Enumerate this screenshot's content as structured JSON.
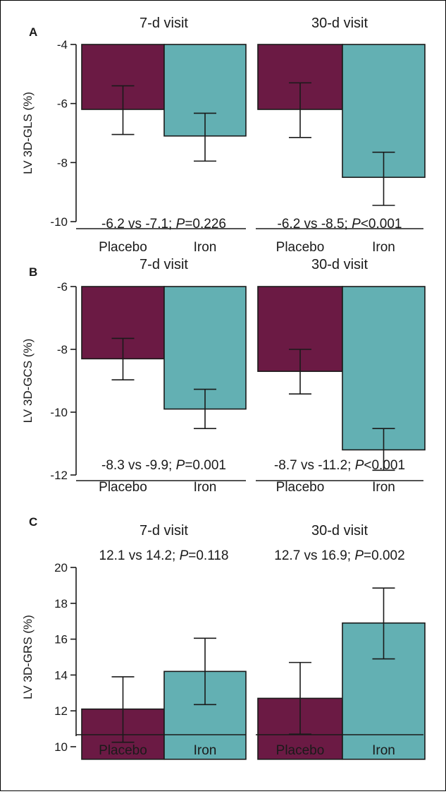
{
  "chart_data": [
    {
      "type": "bar",
      "panel": "A",
      "ylabel": "LV 3D-GLS (%)",
      "ylim": [
        -10,
        -4
      ],
      "yticks": [
        -4,
        -6,
        -8,
        -10
      ],
      "bar_base": -4,
      "categories": [
        "Placebo",
        "Iron"
      ],
      "groups": [
        {
          "title": "7-d visit",
          "values": [
            -6.2,
            -7.1
          ],
          "err_low": [
            -7.05,
            -7.95
          ],
          "err_high": [
            -5.4,
            -6.33
          ],
          "annotation": {
            "text": "-6.2 vs -7.1; ",
            "p_label": "P",
            "p_value": "=0.226"
          }
        },
        {
          "title": "30-d visit",
          "values": [
            -6.2,
            -8.5
          ],
          "err_low": [
            -7.15,
            -9.45
          ],
          "err_high": [
            -5.3,
            -7.65
          ],
          "annotation": {
            "text": "-6.2 vs -8.5; ",
            "p_label": "P",
            "p_value": "<0.001"
          }
        }
      ]
    },
    {
      "type": "bar",
      "panel": "B",
      "ylabel": "LV 3D-GCS (%)",
      "ylim": [
        -12,
        -6
      ],
      "yticks": [
        -6,
        -8,
        -10,
        -12
      ],
      "bar_base": -6,
      "categories": [
        "Placebo",
        "Iron"
      ],
      "groups": [
        {
          "title": "7-d visit",
          "values": [
            -8.3,
            -9.9
          ],
          "err_low": [
            -8.97,
            -10.52
          ],
          "err_high": [
            -7.65,
            -9.27
          ],
          "annotation": {
            "text": "-8.3 vs -9.9; ",
            "p_label": "P",
            "p_value": "=0.001"
          }
        },
        {
          "title": "30-d visit",
          "values": [
            -8.7,
            -11.2
          ],
          "err_low": [
            -9.42,
            -11.85
          ],
          "err_high": [
            -8.0,
            -10.52
          ],
          "annotation": {
            "text": "-8.7 vs -11.2; ",
            "p_label": "P",
            "p_value": "<0.001"
          }
        }
      ]
    },
    {
      "type": "bar",
      "panel": "C",
      "ylabel": "LV 3D-GRS (%)",
      "ylim": [
        10,
        20
      ],
      "yticks": [
        10,
        12,
        14,
        16,
        18,
        20
      ],
      "bar_base": 9.3,
      "categories": [
        "Placebo",
        "Iron"
      ],
      "groups": [
        {
          "title": "7-d visit",
          "values": [
            12.1,
            14.2
          ],
          "err_low": [
            10.25,
            12.35
          ],
          "err_high": [
            13.9,
            16.05
          ],
          "annotation": {
            "text": "12.1 vs 14.2; ",
            "p_label": "P",
            "p_value": "=0.118"
          }
        },
        {
          "title": "30-d visit",
          "values": [
            12.7,
            16.9
          ],
          "err_low": [
            10.7,
            14.9
          ],
          "err_high": [
            14.7,
            18.85
          ],
          "annotation": {
            "text": "12.7 vs 16.9; ",
            "p_label": "P",
            "p_value": "=0.002"
          }
        }
      ]
    }
  ],
  "colors": {
    "placebo": "#6b1a44",
    "iron": "#63b0b3",
    "stroke": "#1a1a1a"
  }
}
